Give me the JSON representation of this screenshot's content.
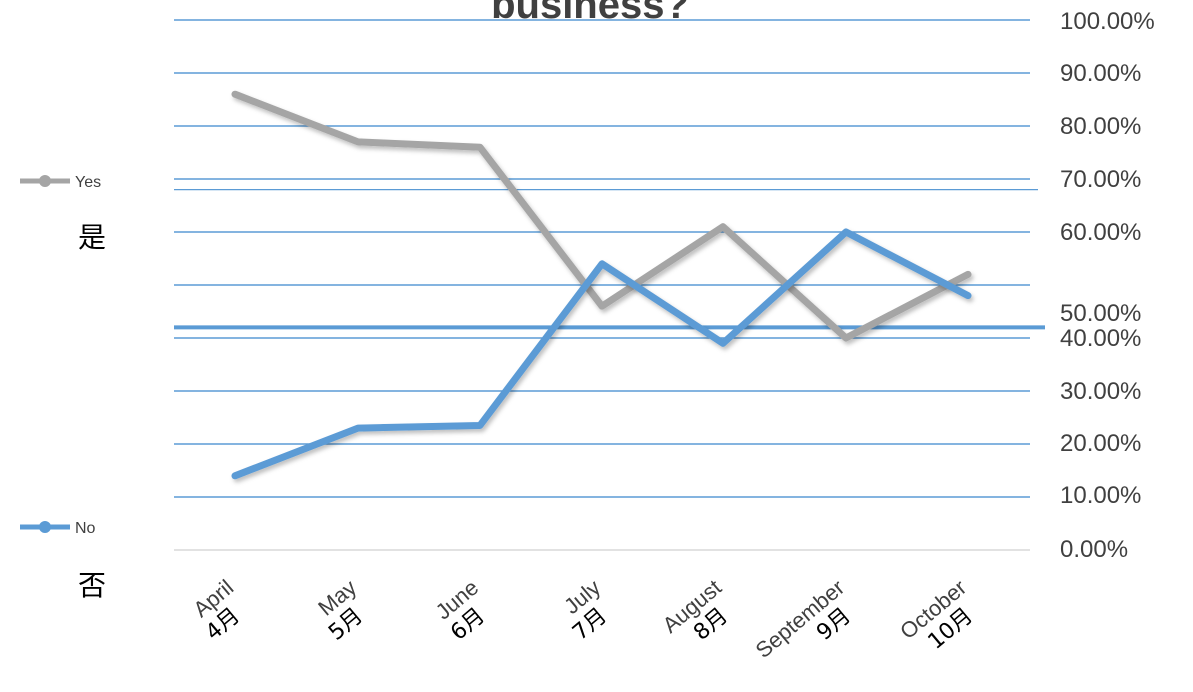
{
  "chart_data": {
    "type": "line",
    "title": "business?",
    "categories": [
      {
        "en": "April",
        "cn": "4月"
      },
      {
        "en": "May",
        "cn": "5月"
      },
      {
        "en": "June",
        "cn": "6月"
      },
      {
        "en": "July",
        "cn": "7月"
      },
      {
        "en": "August",
        "cn": "8月"
      },
      {
        "en": "September",
        "cn": "9月"
      },
      {
        "en": "October",
        "cn": "10月"
      }
    ],
    "y_ticks": [
      "100.00%",
      "90.00%",
      "80.00%",
      "70.00%",
      "60.00%",
      "50.00%",
      "40.00%",
      "30.00%",
      "20.00%",
      "10.00%",
      "0.00%"
    ],
    "ylim": [
      0,
      100
    ],
    "grid": true,
    "legend_position": "left",
    "series": [
      {
        "name": "Yes",
        "name_cn": "是",
        "color": "#a5a5a5",
        "values": [
          86,
          77,
          76,
          46,
          61,
          40,
          52
        ]
      },
      {
        "name": "No",
        "name_cn": "否",
        "color": "#5b9bd5",
        "values": [
          14,
          23,
          23.5,
          54,
          39,
          60,
          48
        ]
      }
    ],
    "reference_line": {
      "value": 42,
      "color": "#5b9bd5"
    }
  }
}
